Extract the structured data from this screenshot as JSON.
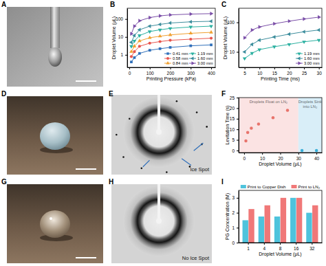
{
  "chart_data": [
    {
      "label": "B",
      "type": "line",
      "x_label": "Printing Pressure (kPa)",
      "y_label": "Droplet Volume (μL)",
      "x": [
        10,
        25,
        50,
        100,
        150,
        200,
        300,
        400
      ],
      "xlim": [
        -10,
        420
      ],
      "xticks": [
        0,
        100,
        200,
        300,
        400
      ],
      "ylim": [
        0.2,
        400
      ],
      "yticks": [
        1,
        10,
        100
      ],
      "log": "y",
      "legend": "bottom-right",
      "series": [
        {
          "name": "0.41 mm",
          "color": "#2f6fba",
          "marker": "square",
          "values": [
            0.4,
            0.7,
            1.2,
            1.8,
            2.2,
            2.6,
            3.2,
            3.6
          ]
        },
        {
          "name": "0.58 mm",
          "color": "#e8554e",
          "marker": "circle",
          "values": [
            0.8,
            1.5,
            3,
            4.5,
            5.5,
            6.5,
            7.5,
            8.5
          ]
        },
        {
          "name": "0.84 mm",
          "color": "#f0a030",
          "marker": "triangle-up",
          "values": [
            1.5,
            3,
            6,
            9,
            11,
            13,
            16,
            18
          ]
        },
        {
          "name": "1.19 mm",
          "color": "#2ab0a0",
          "marker": "triangle-down",
          "values": [
            3,
            6,
            12,
            20,
            25,
            30,
            36,
            40
          ]
        },
        {
          "name": "1.60 mm",
          "color": "#3c8d9c",
          "marker": "triangle-left",
          "values": [
            5,
            12,
            25,
            40,
            50,
            60,
            70,
            75
          ]
        },
        {
          "name": "3.00 mm",
          "color": "#7b4fa8",
          "marker": "triangle-right",
          "values": [
            15,
            40,
            80,
            120,
            150,
            170,
            190,
            200
          ]
        }
      ]
    },
    {
      "label": "C",
      "type": "line",
      "x_label": "Printing Time (ms)",
      "y_label": "Droplet Volume (μL)",
      "x": [
        5,
        7.5,
        10,
        15,
        20,
        25,
        30
      ],
      "xlim": [
        3,
        31
      ],
      "xticks": [
        5,
        10,
        15,
        20,
        25,
        30
      ],
      "ylim": [
        3,
        300
      ],
      "yticks": [
        10,
        100
      ],
      "log": "y",
      "legend": "bottom-right",
      "series": [
        {
          "name": "1.19 mm",
          "color": "#2ab0a0",
          "marker": "triangle-down",
          "values": [
            6,
            9,
            12,
            15,
            18,
            22,
            25
          ]
        },
        {
          "name": "1.60 mm",
          "color": "#3c8d9c",
          "marker": "triangle-left",
          "values": [
            10,
            18,
            25,
            32,
            40,
            48,
            55
          ]
        },
        {
          "name": "3.00 mm",
          "color": "#7b4fa8",
          "marker": "triangle-right",
          "values": [
            30,
            55,
            70,
            90,
            110,
            130,
            150
          ]
        }
      ]
    },
    {
      "label": "F",
      "type": "scatter",
      "x_label": "Droplet Volume (μL)",
      "y_label": "Levitation Time (s)",
      "xlim": [
        -3,
        43
      ],
      "xticks": [
        0,
        10,
        20,
        30,
        40
      ],
      "ylim": [
        -1,
        25
      ],
      "yticks": [
        0,
        5,
        10,
        15,
        20,
        25
      ],
      "regions": [
        {
          "label": "Droplets Float on LN₂",
          "x_range": [
            -3,
            30
          ],
          "color": "#fbe3e3"
        },
        {
          "label": "Droplets Sink into LN₂",
          "x_range": [
            30,
            43
          ],
          "color": "#d9eef8"
        }
      ],
      "series": [
        {
          "color": "#e8736b",
          "marker": "circle",
          "x": [
            1,
            2,
            4,
            8,
            16,
            24
          ],
          "values": [
            4.5,
            8.5,
            10.5,
            12.5,
            15.5,
            19
          ]
        },
        {
          "color": "#3aaed8",
          "marker": "circle",
          "x": [
            32,
            40
          ],
          "values": [
            0,
            0
          ]
        }
      ]
    },
    {
      "label": "I",
      "type": "bar",
      "x_label": "Droplet Volume (μL)",
      "y_label": "PG Concentration (M)",
      "categories": [
        "1",
        "4",
        "8",
        "16",
        "32"
      ],
      "ylim": [
        0,
        3.5
      ],
      "yticks": [
        0,
        1,
        2,
        3
      ],
      "legend": "top",
      "series": [
        {
          "name": "Print to Copper Dish",
          "color": "#4fc3dc",
          "values": [
            1.5,
            1.75,
            1.75,
            3.0,
            2.0
          ]
        },
        {
          "name": "Print to LN₂",
          "color": "#f07878",
          "values": [
            2.25,
            2.5,
            3.0,
            3.0,
            2.5
          ]
        }
      ]
    }
  ],
  "images": [
    {
      "label": "A"
    },
    {
      "label": "D"
    },
    {
      "label": "E",
      "annotation": "Ice Spot"
    },
    {
      "label": "G"
    },
    {
      "label": "H",
      "annotation": "No Ice Spot"
    }
  ]
}
